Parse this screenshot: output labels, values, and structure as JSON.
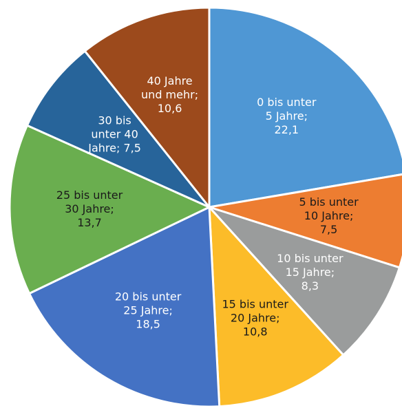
{
  "chart_data": {
    "type": "pie",
    "values": [
      22.1,
      7.5,
      8.3,
      10.8,
      18.5,
      13.7,
      7.5,
      10.6
    ],
    "value_labels": [
      "0 bis unter\n5 Jahre;\n22,1",
      "5 bis unter\n10 Jahre;\n7,5",
      "10 bis unter\n15 Jahre;\n8,3",
      "15 bis unter\n20 Jahre;\n10,8",
      "20 bis unter\n25 Jahre;\n18,5",
      "25 bis unter\n30 Jahre;\n13,7",
      "30 bis\nunter 40\nJahre; 7,5",
      "40 Jahre\nund mehr;\n10,6"
    ],
    "colors": [
      "#4f97d4",
      "#ed7d31",
      "#9a9c9c",
      "#fcbc29",
      "#4472c4",
      "#6aae4f",
      "#27649a",
      "#9c4a1c"
    ],
    "label_colors": [
      "#ffffff",
      "#1a1a1a",
      "#ffffff",
      "#1a1a1a",
      "#ffffff",
      "#1a1a1a",
      "#ffffff",
      "#ffffff"
    ]
  }
}
